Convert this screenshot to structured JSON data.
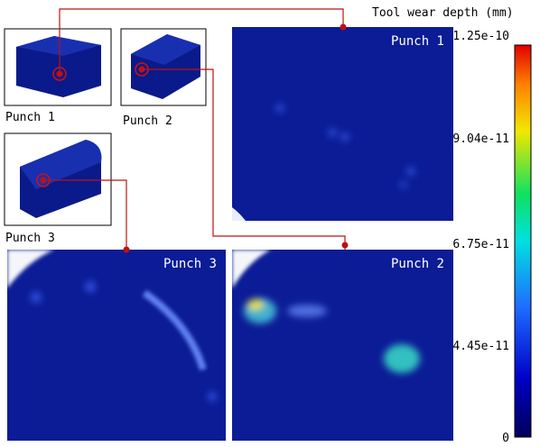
{
  "colorbar": {
    "title": "Tool wear depth (mm)",
    "ticks": [
      "1.25e-10",
      "9.04e-11",
      "6.75e-11",
      "4.45e-11",
      "0"
    ]
  },
  "thumbnails": [
    {
      "label": "Punch 1"
    },
    {
      "label": "Punch 2"
    },
    {
      "label": "Punch 3"
    }
  ],
  "panels": [
    {
      "label": "Punch 1"
    },
    {
      "label": "Punch 3"
    },
    {
      "label": "Punch 2"
    }
  ]
}
